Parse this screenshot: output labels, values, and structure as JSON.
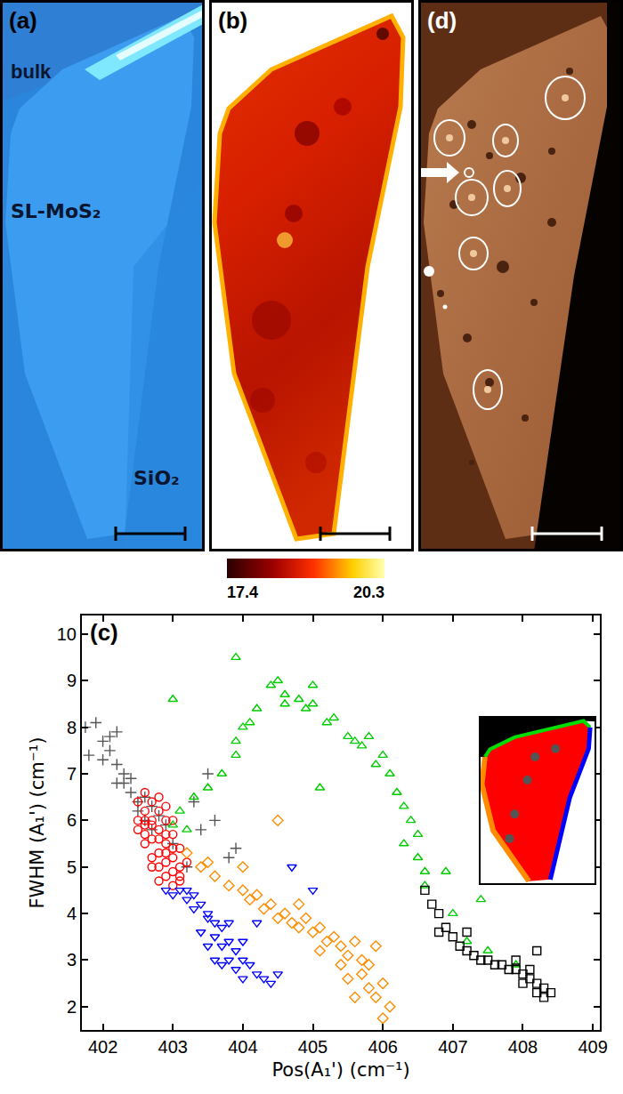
{
  "chart_data": [
    {
      "type": "scatter",
      "annotations": [
        "(c)"
      ],
      "x_label": "Pos(A₁') (cm⁻¹)",
      "y_label": "FWHM (A₁') (cm⁻¹)",
      "xlim": [
        401.7,
        409.1
      ],
      "xticks": [
        402,
        403,
        404,
        405,
        406,
        407,
        408,
        409
      ],
      "ylim": [
        1.5,
        10.4
      ],
      "yticks": [
        2,
        3,
        4,
        5,
        6,
        7,
        8,
        9,
        10
      ],
      "grid": false,
      "series": [
        {
          "color": "#555555",
          "marker": "plus",
          "x": [
            401.75,
            401.9,
            402.0,
            402.1,
            402.2,
            402.2,
            402.3,
            402.3,
            402.4,
            402.4,
            402.5,
            402.5,
            402.6,
            402.6,
            402.7,
            402.7,
            402.8,
            402.9,
            403.0,
            403.2,
            403.4,
            403.5,
            403.6,
            403.8,
            403.9,
            402.0,
            402.1,
            401.8,
            403.3,
            402.2
          ],
          "y": [
            8.0,
            8.1,
            7.7,
            7.5,
            7.9,
            7.2,
            7.0,
            6.8,
            6.6,
            6.9,
            6.4,
            6.2,
            6.5,
            6.0,
            6.3,
            5.8,
            6.1,
            5.9,
            5.5,
            5.0,
            5.8,
            7.0,
            6.0,
            5.2,
            5.4,
            7.3,
            7.8,
            7.4,
            6.4,
            6.8
          ]
        },
        {
          "color": "#ff0000",
          "marker": "circle",
          "x": [
            402.5,
            402.6,
            402.6,
            402.7,
            402.7,
            402.8,
            402.8,
            402.9,
            402.9,
            403.0,
            403.0,
            403.1,
            403.1,
            402.6,
            402.7,
            402.8,
            402.9,
            403.0,
            402.5,
            402.6,
            402.7,
            402.8,
            402.9,
            403.0,
            403.1,
            403.2,
            402.5,
            402.6,
            402.7,
            402.8,
            402.9,
            403.0,
            403.1,
            402.7,
            402.8,
            402.9,
            402.6,
            402.8,
            403.0,
            402.9
          ],
          "y": [
            6.4,
            6.2,
            5.9,
            6.0,
            5.6,
            5.8,
            5.3,
            5.5,
            5.1,
            5.2,
            4.9,
            4.8,
            5.0,
            5.5,
            5.2,
            5.0,
            4.8,
            4.6,
            5.8,
            6.6,
            6.4,
            6.2,
            6.0,
            5.7,
            5.4,
            5.1,
            6.0,
            5.7,
            5.0,
            4.7,
            5.7,
            5.4,
            4.7,
            5.9,
            5.6,
            5.3,
            6.0,
            6.5,
            6.0,
            6.3
          ]
        },
        {
          "color": "#0000ff",
          "marker": "triangle-down",
          "x": [
            402.9,
            403.0,
            403.1,
            403.2,
            403.3,
            403.3,
            403.4,
            403.5,
            403.5,
            403.6,
            403.6,
            403.7,
            403.7,
            403.8,
            403.8,
            403.9,
            403.9,
            404.0,
            404.0,
            404.1,
            404.2,
            404.3,
            404.4,
            404.5,
            403.4,
            403.5,
            403.6,
            403.2,
            404.7,
            404.2,
            405.0,
            403.7,
            404.0,
            403.8
          ],
          "y": [
            4.5,
            4.4,
            4.5,
            4.3,
            4.4,
            4.1,
            4.2,
            3.9,
            4.0,
            3.8,
            3.5,
            3.7,
            3.3,
            3.4,
            3.0,
            3.2,
            2.8,
            3.0,
            2.6,
            2.9,
            2.7,
            2.6,
            2.5,
            2.7,
            3.6,
            3.3,
            3.0,
            4.5,
            5.0,
            3.8,
            4.5,
            2.9,
            3.4,
            3.8
          ]
        },
        {
          "color": "#ff8c00",
          "marker": "diamond",
          "x": [
            403.2,
            403.4,
            403.5,
            403.6,
            403.8,
            404.0,
            404.1,
            404.2,
            404.3,
            404.4,
            404.5,
            404.6,
            404.7,
            404.8,
            404.9,
            405.0,
            405.1,
            405.2,
            405.3,
            405.4,
            405.5,
            405.6,
            405.7,
            405.7,
            405.8,
            405.8,
            405.9,
            406.0,
            406.1,
            406.0,
            405.5,
            405.6,
            404.5,
            404.0,
            405.1,
            405.9,
            405.4,
            404.8
          ],
          "y": [
            5.3,
            5.0,
            5.1,
            4.8,
            4.6,
            4.5,
            4.3,
            4.4,
            4.1,
            4.2,
            3.9,
            4.0,
            3.8,
            3.7,
            3.9,
            3.6,
            3.7,
            3.4,
            3.5,
            3.3,
            3.1,
            3.4,
            3.0,
            2.7,
            2.9,
            2.4,
            2.2,
            2.5,
            2.0,
            1.75,
            2.6,
            2.2,
            6.0,
            5.0,
            3.2,
            3.3,
            2.9,
            4.2
          ]
        },
        {
          "color": "#00cc00",
          "marker": "triangle-up",
          "x": [
            403.1,
            403.0,
            403.2,
            403.3,
            403.5,
            403.7,
            403.9,
            403.9,
            404.0,
            403.9,
            404.1,
            404.2,
            404.4,
            404.5,
            404.6,
            404.6,
            404.8,
            404.9,
            405.0,
            405.0,
            405.2,
            405.3,
            405.5,
            405.6,
            405.7,
            405.8,
            405.9,
            406.0,
            406.1,
            406.2,
            406.3,
            406.4,
            406.5,
            406.5,
            406.6,
            406.6,
            406.9,
            407.0,
            407.2,
            407.5,
            407.4,
            407.9,
            403.0,
            405.1,
            406.3
          ],
          "y": [
            6.2,
            5.9,
            5.8,
            6.5,
            6.7,
            7.0,
            7.7,
            7.4,
            8.0,
            9.5,
            8.1,
            8.4,
            8.9,
            9.0,
            8.7,
            8.5,
            8.6,
            8.4,
            8.5,
            8.9,
            8.1,
            8.2,
            7.8,
            7.7,
            7.6,
            7.8,
            7.2,
            7.4,
            7.0,
            6.6,
            6.3,
            6.0,
            5.7,
            5.2,
            4.9,
            4.6,
            4.9,
            4.0,
            3.4,
            3.2,
            4.3,
            2.9,
            8.6,
            6.7,
            5.5
          ]
        },
        {
          "color": "#000000",
          "marker": "square",
          "x": [
            406.6,
            406.7,
            406.8,
            406.9,
            407.0,
            407.1,
            407.2,
            407.3,
            407.4,
            407.5,
            407.6,
            407.7,
            407.8,
            407.9,
            408.0,
            408.1,
            408.1,
            408.2,
            408.2,
            408.3,
            408.3,
            408.4,
            407.9,
            408.0,
            407.2,
            406.8,
            408.2
          ],
          "y": [
            4.5,
            4.2,
            4.0,
            3.7,
            3.5,
            3.3,
            3.2,
            3.1,
            3.0,
            3.0,
            2.9,
            2.9,
            2.8,
            2.8,
            2.7,
            2.6,
            2.8,
            2.5,
            2.3,
            2.4,
            2.2,
            2.3,
            3.0,
            2.5,
            3.6,
            3.6,
            3.2
          ]
        }
      ]
    }
  ],
  "panels": [
    {
      "label": "(a)",
      "texts": [
        "bulk",
        "SL-MoS₂",
        "SiO₂"
      ]
    },
    {
      "label": "(b)",
      "colorbar": {
        "range": [
          17.4,
          20.3
        ],
        "ticks": [
          17.4,
          20.3
        ]
      }
    },
    {
      "label": "(d)"
    }
  ]
}
